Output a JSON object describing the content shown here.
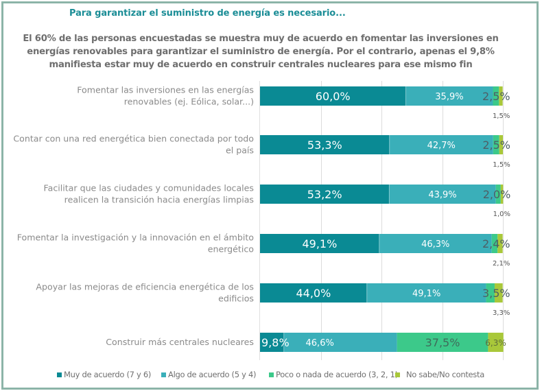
{
  "header": {
    "title": "Para garantizar el suministro de energía es necesario...",
    "subtitle_lines": [
      "El 60% de las personas encuestadas se muestra muy de acuerdo en fomentar las inversiones en",
      "energías renovables para garantizar el suministro de energía. Por el contrario, apenas el 9,8%",
      "manifiesta estar muy de acuerdo en construir centrales nucleares para ese mismo fin"
    ]
  },
  "legend": {
    "items": [
      {
        "label": "Muy de acuerdo (7 y 6)",
        "color": "#0a8a94"
      },
      {
        "label": "Algo de acuerdo (5 y 4)",
        "color": "#3aafb9"
      },
      {
        "label": "Poco o nada de acuerdo (3, 2, 1)",
        "color": "#3cc98a"
      },
      {
        "label": "No sabe/No contesta",
        "color": "#a9c83a"
      }
    ]
  },
  "chart_data": {
    "type": "bar",
    "orientation": "horizontal",
    "stacked": true,
    "title": "Para garantizar el suministro de energía es necesario...",
    "xlabel": "",
    "ylabel": "",
    "xlim": [
      0,
      100
    ],
    "grid": true,
    "gridlines_at": [
      25,
      50,
      75,
      100
    ],
    "legend_position": "bottom",
    "categories": [
      [
        "Fomentar las inversiones en las energías",
        "renovables (ej. Eólica, solar...)"
      ],
      [
        "Contar con una red energética bien conectada por todo",
        "el país"
      ],
      [
        "Facilitar que las ciudades y comunidades locales",
        "realicen la transición hacia energías limpias"
      ],
      [
        "Fomentar la investigación y la innovación en el ámbito",
        "energético"
      ],
      [
        "Apoyar las mejoras de eficiencia energética de los",
        "edificios"
      ],
      [
        "Construir más centrales nucleares"
      ]
    ],
    "series": [
      {
        "name": "Muy de acuerdo (7 y 6)",
        "color": "#0a8a94",
        "values": [
          60.0,
          53.3,
          53.2,
          49.1,
          44.0,
          9.8
        ],
        "labels": [
          "60,0%",
          "53,3%",
          "53,2%",
          "49,1%",
          "44,0%",
          "9,8%"
        ]
      },
      {
        "name": "Algo de acuerdo (5 y 4)",
        "color": "#3aafb9",
        "values": [
          35.9,
          42.7,
          43.9,
          46.3,
          49.1,
          46.6
        ],
        "labels": [
          "35,9%",
          "42,7%",
          "43,9%",
          "46,3%",
          "49,1%",
          "46,6%"
        ]
      },
      {
        "name": "Poco o nada de acuerdo (3, 2, 1)",
        "color": "#3cc98a",
        "values": [
          2.5,
          2.5,
          2.0,
          2.4,
          3.5,
          37.5
        ],
        "labels": [
          "2,5%",
          "2,5%",
          "2,0%",
          "2,4%",
          "3,5%",
          "37,5%"
        ]
      },
      {
        "name": "No sabe/No contesta",
        "color": "#a9c83a",
        "values": [
          1.5,
          1.5,
          1.0,
          2.1,
          3.3,
          6.3
        ],
        "labels": [
          "1,5%",
          "1,5%",
          "1,0%",
          "2,1%",
          "3,3%",
          "6,3%"
        ]
      }
    ]
  }
}
